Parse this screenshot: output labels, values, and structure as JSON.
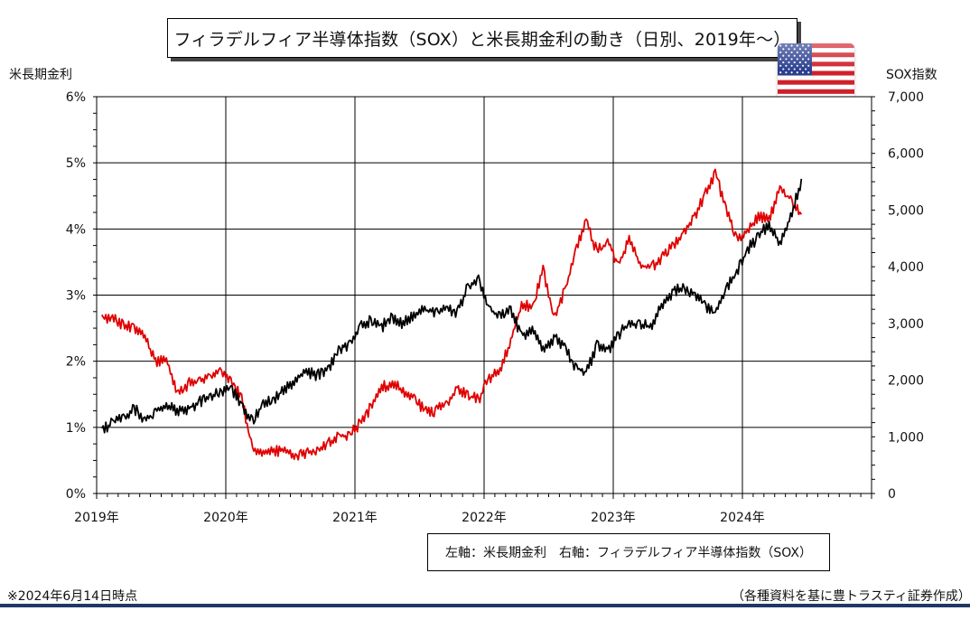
{
  "title": "フィラデルフィア半導体指数（SOX）と米長期金利の動き（日別、2019年～）",
  "left_axis_title": "米長期金利",
  "right_axis_title": "SOX指数",
  "legend_text": "左軸：米長期金利　右軸：フィラデルフィア半導体指数（SOX）",
  "note_left": "※2024年6月14日時点",
  "note_right": "（各種資料を基に豊トラスティ証券作成）",
  "colors": {
    "rate_line": "#e00000",
    "sox_line": "#000000",
    "grid": "#000000",
    "bottom_bar": "#1f3864"
  },
  "flag_icon": "us-flag-icon",
  "chart_data": {
    "type": "line",
    "x_ticks": [
      "2019年",
      "2020年",
      "2021年",
      "2022年",
      "2023年",
      "2024年"
    ],
    "x_range": [
      "2019-01",
      "2025-01"
    ],
    "y_left": {
      "label": "米長期金利",
      "ticks": [
        "0%",
        "1%",
        "2%",
        "3%",
        "4%",
        "5%",
        "6%"
      ],
      "range": [
        0,
        6
      ]
    },
    "y_right": {
      "label": "SOX指数",
      "ticks": [
        "0",
        "1,000",
        "2,000",
        "3,000",
        "4,000",
        "5,000",
        "6,000",
        "7,000"
      ],
      "range": [
        0,
        7000
      ]
    },
    "grid": true,
    "series": [
      {
        "name": "米長期金利",
        "axis": "left",
        "x": [
          "2019-01",
          "2019-02",
          "2019-03",
          "2019-04",
          "2019-05",
          "2019-06",
          "2019-07",
          "2019-08",
          "2019-09",
          "2019-10",
          "2019-11",
          "2019-12",
          "2020-01",
          "2020-02",
          "2020-03",
          "2020-04",
          "2020-05",
          "2020-06",
          "2020-07",
          "2020-08",
          "2020-09",
          "2020-10",
          "2020-11",
          "2020-12",
          "2021-01",
          "2021-02",
          "2021-03",
          "2021-04",
          "2021-05",
          "2021-06",
          "2021-07",
          "2021-08",
          "2021-09",
          "2021-10",
          "2021-11",
          "2021-12",
          "2022-01",
          "2022-02",
          "2022-03",
          "2022-04",
          "2022-05",
          "2022-06",
          "2022-07",
          "2022-08",
          "2022-09",
          "2022-10",
          "2022-11",
          "2022-12",
          "2023-01",
          "2023-02",
          "2023-03",
          "2023-04",
          "2023-05",
          "2023-06",
          "2023-07",
          "2023-08",
          "2023-09",
          "2023-10",
          "2023-11",
          "2023-12",
          "2024-01",
          "2024-02",
          "2024-03",
          "2024-04",
          "2024-05",
          "2024-06"
        ],
        "values": [
          2.7,
          2.7,
          2.6,
          2.55,
          2.4,
          2.05,
          2.05,
          1.55,
          1.7,
          1.75,
          1.8,
          1.9,
          1.75,
          1.5,
          0.7,
          0.65,
          0.68,
          0.7,
          0.6,
          0.65,
          0.7,
          0.8,
          0.9,
          0.93,
          1.1,
          1.35,
          1.65,
          1.7,
          1.6,
          1.5,
          1.28,
          1.3,
          1.4,
          1.6,
          1.55,
          1.45,
          1.8,
          1.9,
          2.35,
          2.9,
          2.85,
          3.45,
          2.7,
          3.1,
          3.7,
          4.15,
          3.7,
          3.85,
          3.5,
          3.9,
          3.5,
          3.45,
          3.6,
          3.8,
          3.95,
          4.2,
          4.55,
          4.9,
          4.35,
          3.9,
          4.0,
          4.25,
          4.2,
          4.65,
          4.5,
          4.22
        ]
      },
      {
        "name": "フィラデルフィア半導体指数（SOX）",
        "axis": "right",
        "x": [
          "2019-01",
          "2019-02",
          "2019-03",
          "2019-04",
          "2019-05",
          "2019-06",
          "2019-07",
          "2019-08",
          "2019-09",
          "2019-10",
          "2019-11",
          "2019-12",
          "2020-01",
          "2020-02",
          "2020-03",
          "2020-04",
          "2020-05",
          "2020-06",
          "2020-07",
          "2020-08",
          "2020-09",
          "2020-10",
          "2020-11",
          "2020-12",
          "2021-01",
          "2021-02",
          "2021-03",
          "2021-04",
          "2021-05",
          "2021-06",
          "2021-07",
          "2021-08",
          "2021-09",
          "2021-10",
          "2021-11",
          "2021-12",
          "2022-01",
          "2022-02",
          "2022-03",
          "2022-04",
          "2022-05",
          "2022-06",
          "2022-07",
          "2022-08",
          "2022-09",
          "2022-10",
          "2022-11",
          "2022-12",
          "2023-01",
          "2023-02",
          "2023-03",
          "2023-04",
          "2023-05",
          "2023-06",
          "2023-07",
          "2023-08",
          "2023-09",
          "2023-10",
          "2023-11",
          "2023-12",
          "2024-01",
          "2024-02",
          "2024-03",
          "2024-04",
          "2024-05",
          "2024-06"
        ],
        "values": [
          1150,
          1300,
          1400,
          1550,
          1350,
          1500,
          1600,
          1500,
          1550,
          1650,
          1750,
          1850,
          1900,
          1600,
          1350,
          1650,
          1700,
          1900,
          2050,
          2200,
          2150,
          2250,
          2600,
          2700,
          3000,
          3100,
          3000,
          3150,
          3050,
          3200,
          3300,
          3250,
          3300,
          3250,
          3700,
          3850,
          3300,
          3200,
          3300,
          2850,
          2950,
          2600,
          2800,
          2650,
          2300,
          2150,
          2700,
          2550,
          2850,
          3050,
          3050,
          3000,
          3350,
          3600,
          3700,
          3550,
          3400,
          3200,
          3650,
          3950,
          4350,
          4600,
          4800,
          4450,
          4950,
          5550
        ]
      }
    ]
  }
}
